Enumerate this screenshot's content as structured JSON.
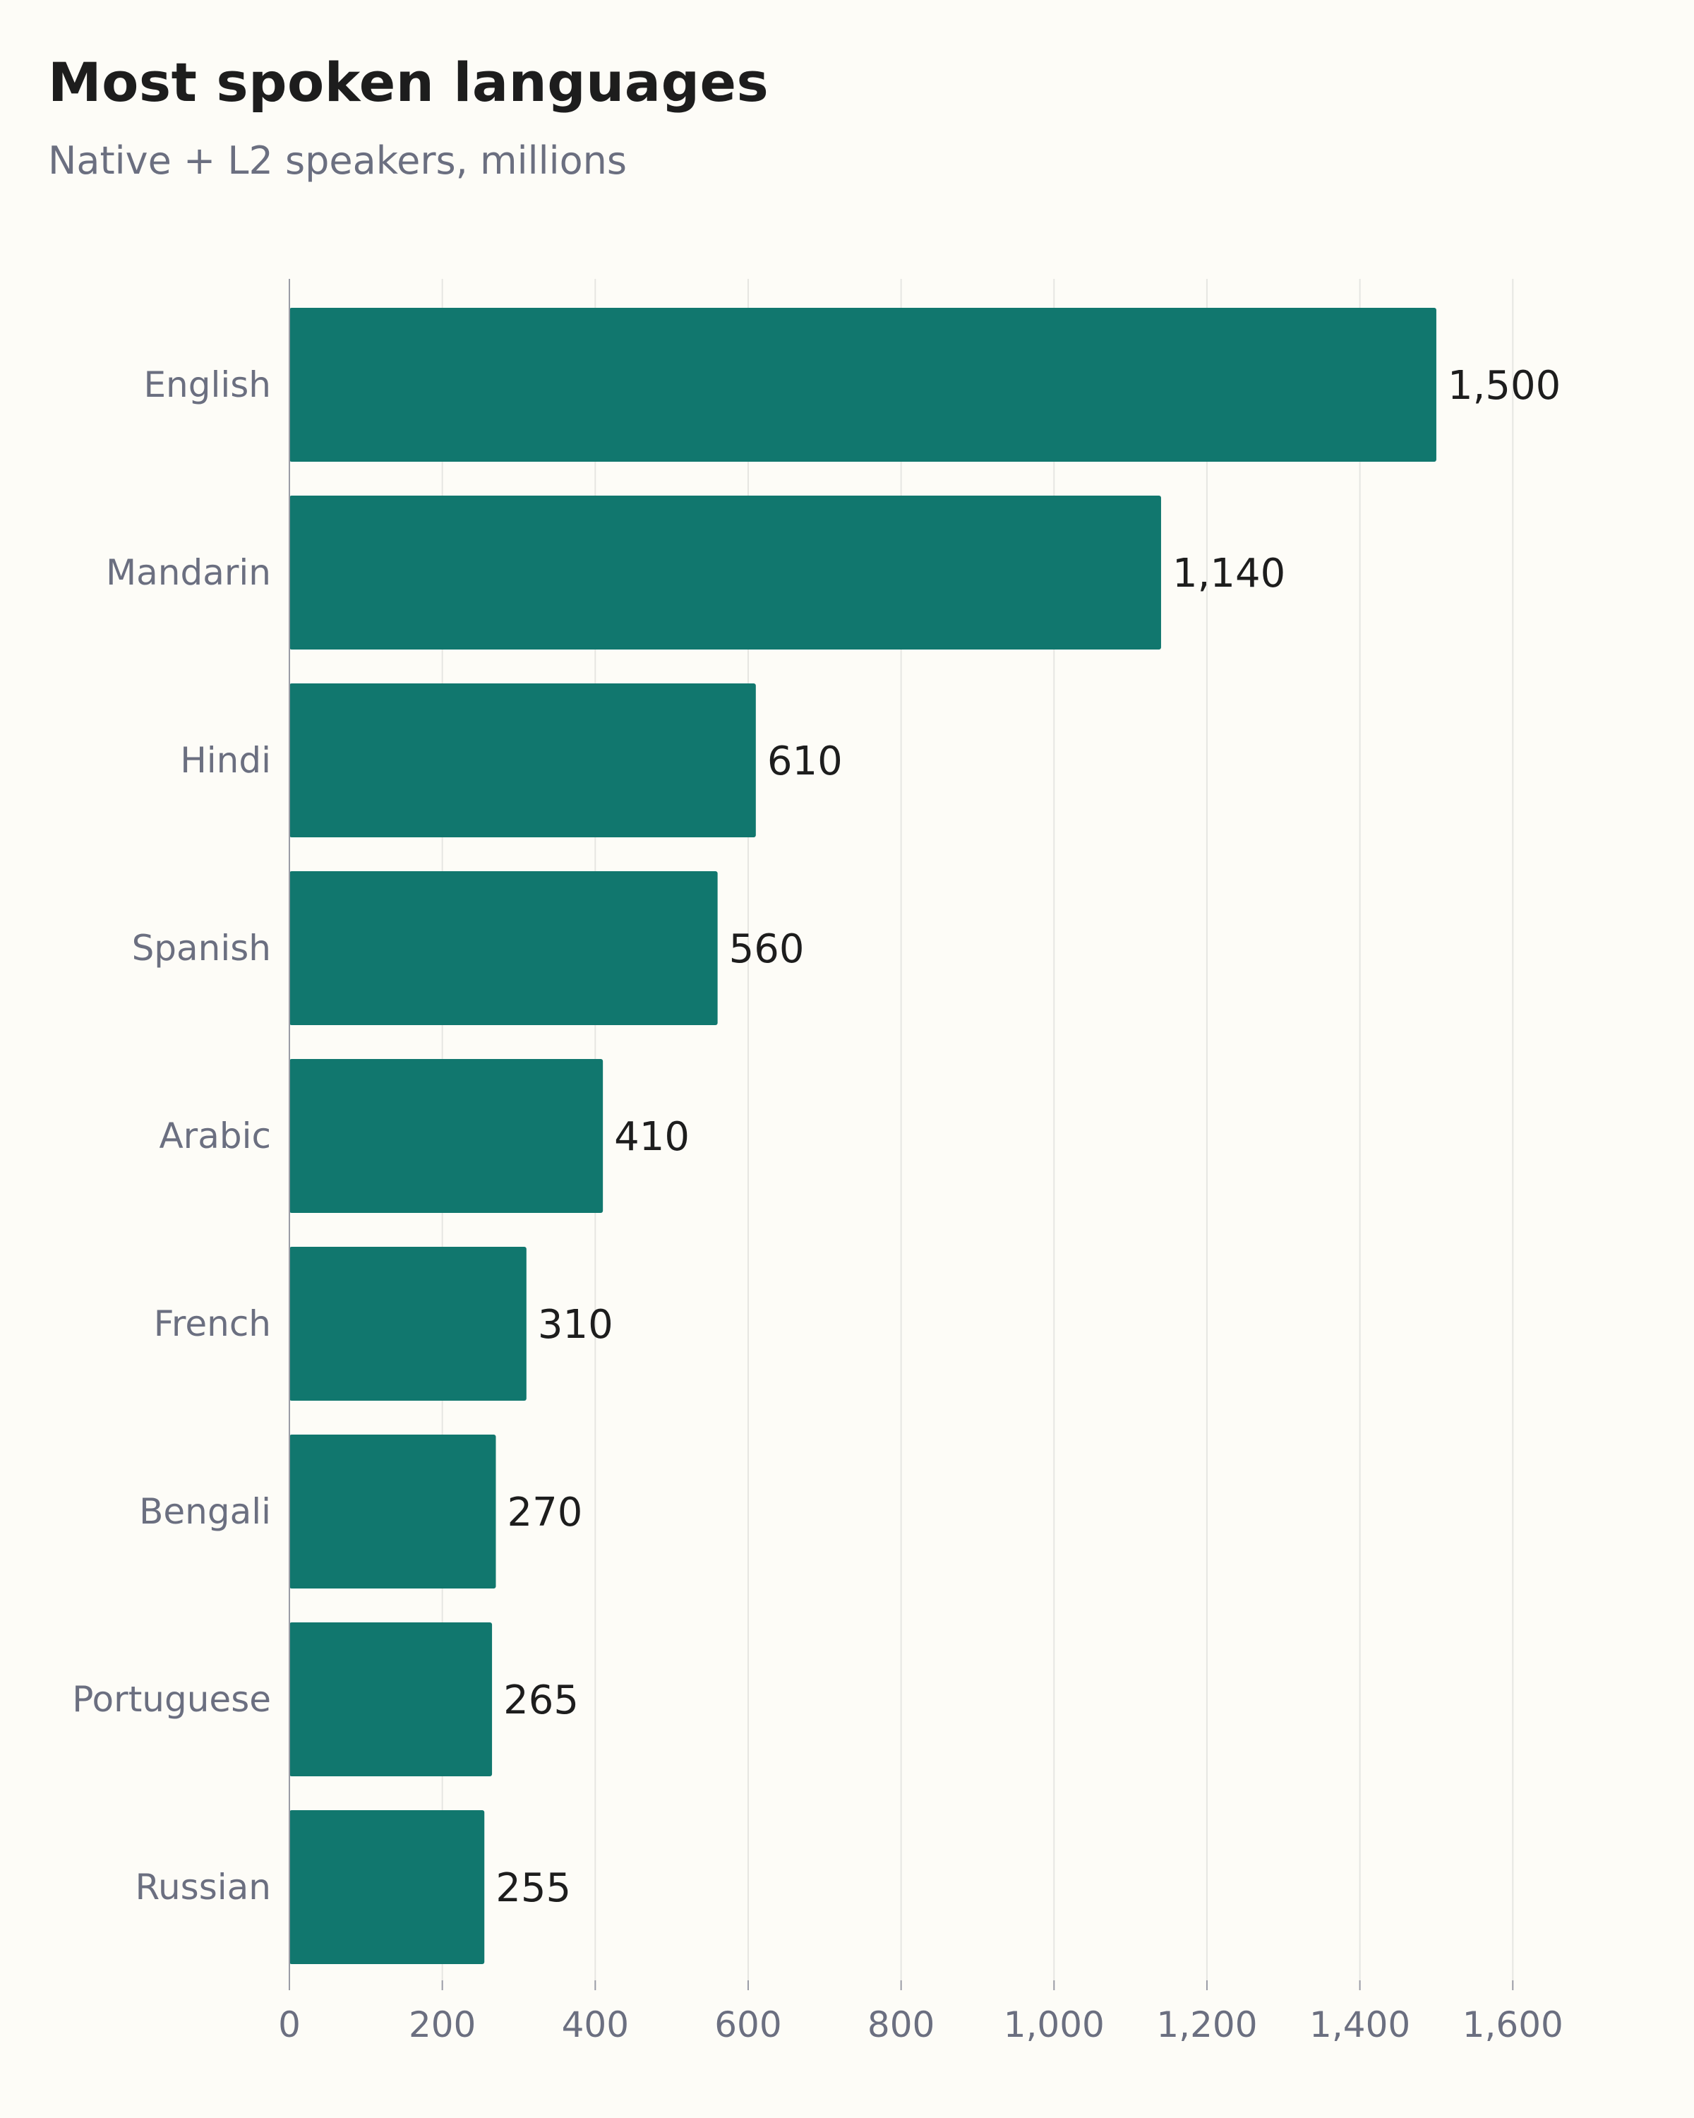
{
  "chart_data": {
    "type": "bar",
    "orientation": "horizontal",
    "title": "Most spoken languages",
    "subtitle": "Native + L2 speakers, millions",
    "categories": [
      "English",
      "Mandarin",
      "Hindi",
      "Spanish",
      "Arabic",
      "French",
      "Bengali",
      "Portuguese",
      "Russian"
    ],
    "values": [
      1500,
      1140,
      610,
      560,
      410,
      310,
      270,
      265,
      255
    ],
    "value_labels": [
      "1,500",
      "1,140",
      "610",
      "560",
      "410",
      "310",
      "270",
      "265",
      "255"
    ],
    "xlim": [
      0,
      1700
    ],
    "x_ticks": [
      0,
      200,
      400,
      600,
      800,
      1000,
      1200,
      1400,
      1600
    ],
    "x_tick_labels": [
      "0",
      "200",
      "400",
      "600",
      "800",
      "1,000",
      "1,200",
      "1,400",
      "1,600"
    ],
    "grid": "vertical",
    "legend": "none",
    "bar_color": "#11776e"
  }
}
